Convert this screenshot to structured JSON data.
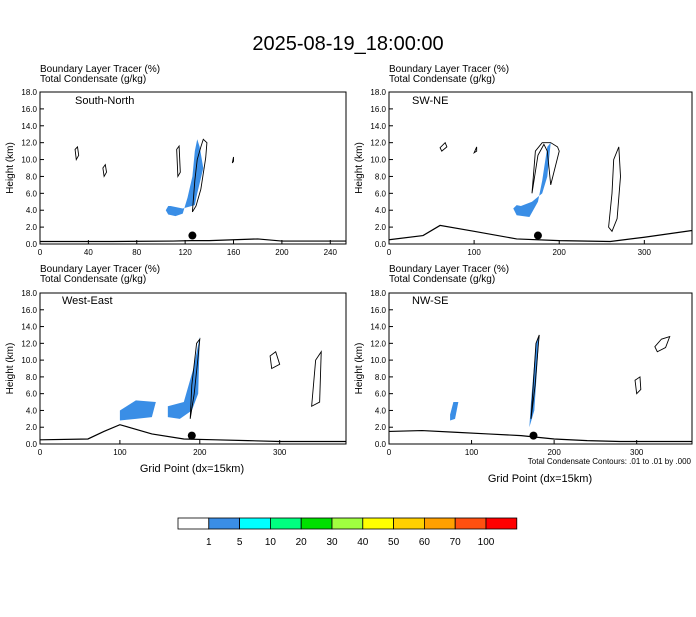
{
  "title": "2025-08-19_18:00:00",
  "colors": {
    "tracer": "#3a8ee6",
    "contour": "#000000",
    "terrain": "#000000"
  },
  "panels": [
    {
      "name": "South-North",
      "header_line1": "Boundary Layer Tracer   (%)",
      "header_line2": "Total Condensate   (g/kg)",
      "ylabel": "Height (km)",
      "xlabel": "",
      "xticks": [
        "0",
        "40",
        "80",
        "120",
        "160",
        "200",
        "240"
      ],
      "yticks": [
        "0.0",
        "2.0",
        "4.0",
        "6.0",
        "8.0",
        "10.0",
        "12.0",
        "14.0",
        "16.0",
        "18.0"
      ],
      "footnote": ""
    },
    {
      "name": "SW-NE",
      "header_line1": "Boundary Layer Tracer   (%)",
      "header_line2": "Total Condensate   (g/kg)",
      "ylabel": "Height (km)",
      "xlabel": "",
      "xticks": [
        "0",
        "100",
        "200",
        "300"
      ],
      "yticks": [
        "0.0",
        "2.0",
        "4.0",
        "6.0",
        "8.0",
        "10.0",
        "12.0",
        "14.0",
        "16.0",
        "18.0"
      ],
      "footnote": ""
    },
    {
      "name": "West-East",
      "header_line1": "Boundary Layer Tracer   (%)",
      "header_line2": "Total Condensate   (g/kg)",
      "ylabel": "Height (km)",
      "xlabel": "Grid Point (dx=15km)",
      "xticks": [
        "0",
        "100",
        "200",
        "300"
      ],
      "yticks": [
        "0.0",
        "2.0",
        "4.0",
        "6.0",
        "8.0",
        "10.0",
        "12.0",
        "14.0",
        "16.0",
        "18.0"
      ],
      "footnote": ""
    },
    {
      "name": "NW-SE",
      "header_line1": "Boundary Layer Tracer   (%)",
      "header_line2": "Total Condensate   (g/kg)",
      "ylabel": "Height (km)",
      "xlabel": "Grid Point (dx=15km)",
      "xticks": [
        "0",
        "100",
        "200",
        "300"
      ],
      "yticks": [
        "0.0",
        "2.0",
        "4.0",
        "6.0",
        "8.0",
        "10.0",
        "12.0",
        "14.0",
        "16.0",
        "18.0"
      ],
      "footnote": "Total Condensate Contours: .01 to .01 by .000"
    }
  ],
  "colorbar": {
    "labels": [
      "1",
      "5",
      "10",
      "20",
      "30",
      "40",
      "50",
      "60",
      "70",
      "100"
    ],
    "colors": [
      "#ffffff",
      "#3a8ee6",
      "#00ffff",
      "#00ff80",
      "#00e000",
      "#a0ff40",
      "#ffff00",
      "#ffd000",
      "#ffa000",
      "#ff5010",
      "#ff0000"
    ]
  },
  "chart_data": [
    {
      "type": "heatmap",
      "title": "South-North",
      "xlim": [
        0,
        253
      ],
      "ylim": [
        0,
        18
      ],
      "tracer_blobs_km": [
        {
          "x": [
            108,
            118,
            128,
            130,
            135,
            132,
            130,
            128,
            126,
            122,
            118,
            112,
            106,
            104,
            106
          ],
          "y": [
            4.5,
            4.2,
            4.6,
            6.0,
            9.0,
            11.5,
            12.4,
            11.0,
            8.0,
            5.5,
            3.6,
            3.3,
            3.5,
            4.0,
            4.5
          ]
        }
      ],
      "contours": [
        {
          "x": [
            126,
            129,
            133,
            137,
            138,
            135,
            133,
            130,
            128,
            126
          ],
          "y": [
            3.8,
            4.5,
            6.5,
            10.2,
            12.0,
            12.4,
            11.5,
            10.0,
            7.5,
            3.8
          ]
        },
        {
          "x": [
            30,
            32,
            31,
            29,
            30
          ],
          "y": [
            10.0,
            10.5,
            11.5,
            11.2,
            10.0
          ]
        },
        {
          "x": [
            53,
            55,
            54,
            52,
            53
          ],
          "y": [
            8.0,
            8.5,
            9.4,
            9.0,
            8.0
          ]
        },
        {
          "x": [
            114,
            116,
            115,
            113,
            114
          ],
          "y": [
            8.0,
            8.5,
            11.6,
            11.2,
            8.0
          ]
        },
        {
          "x": [
            159,
            160,
            160,
            159
          ],
          "y": [
            9.6,
            9.8,
            10.3,
            9.6
          ]
        }
      ],
      "terrain": {
        "x": [
          0,
          60,
          110,
          125,
          140,
          180,
          200,
          253
        ],
        "y": [
          0.3,
          0.3,
          0.35,
          0.4,
          0.4,
          0.6,
          0.35,
          0.35
        ]
      },
      "marker": {
        "x": 126,
        "y": 1.0
      }
    },
    {
      "type": "heatmap",
      "title": "SW-NE",
      "xlim": [
        0,
        356
      ],
      "ylim": [
        0,
        18
      ],
      "tracer_blobs_km": [
        {
          "x": [
            155,
            168,
            180,
            186,
            190,
            186,
            180,
            175,
            165,
            150,
            146,
            150,
            155
          ],
          "y": [
            4.5,
            5.0,
            6.0,
            8.0,
            12.0,
            11.5,
            7.5,
            5.0,
            3.2,
            3.4,
            4.2,
            4.6,
            4.5
          ]
        }
      ],
      "contours": [
        {
          "x": [
            168,
            175,
            182,
            186,
            190,
            200,
            198,
            190,
            180,
            172,
            168
          ],
          "y": [
            6.0,
            10.5,
            11.8,
            11.0,
            7.0,
            11.0,
            11.5,
            12.0,
            12.0,
            11.0,
            6.0
          ]
        },
        {
          "x": [
            62,
            68,
            66,
            60,
            62
          ],
          "y": [
            11.0,
            11.5,
            12.0,
            11.4,
            11.0
          ]
        },
        {
          "x": [
            100,
            103,
            103,
            100
          ],
          "y": [
            10.8,
            11.0,
            11.5,
            10.8
          ]
        },
        {
          "x": [
            258,
            262,
            264,
            270,
            272,
            268,
            262,
            258
          ],
          "y": [
            2.0,
            6.0,
            10.0,
            11.5,
            8.0,
            3.0,
            1.5,
            2.0
          ]
        }
      ],
      "terrain": {
        "x": [
          0,
          40,
          60,
          100,
          150,
          200,
          260,
          300,
          356
        ],
        "y": [
          0.5,
          1.0,
          2.2,
          1.5,
          0.6,
          0.4,
          0.3,
          0.8,
          1.6
        ]
      },
      "marker": {
        "x": 175,
        "y": 1.0
      }
    },
    {
      "type": "heatmap",
      "title": "West-East",
      "xlim": [
        0,
        383
      ],
      "ylim": [
        0,
        18
      ],
      "tracer_blobs_km": [
        {
          "x": [
            100,
            120,
            140,
            145,
            120,
            100
          ],
          "y": [
            2.8,
            3.0,
            3.2,
            5.0,
            5.2,
            4.0
          ]
        },
        {
          "x": [
            160,
            175,
            190,
            198,
            200,
            192,
            180,
            160
          ],
          "y": [
            3.2,
            3.0,
            4.0,
            6.0,
            12.8,
            9.0,
            5.0,
            4.5
          ]
        }
      ],
      "contours": [
        {
          "x": [
            188,
            193,
            198,
            200,
            196,
            190,
            188
          ],
          "y": [
            3.0,
            6.0,
            10.5,
            12.5,
            12.0,
            7.0,
            3.0
          ]
        },
        {
          "x": [
            340,
            350,
            352,
            345,
            340
          ],
          "y": [
            4.5,
            5.0,
            11.0,
            10.0,
            4.5
          ]
        },
        {
          "x": [
            290,
            300,
            295,
            288,
            290
          ],
          "y": [
            9.0,
            9.5,
            11.0,
            10.5,
            9.0
          ]
        }
      ],
      "terrain": {
        "x": [
          0,
          60,
          80,
          100,
          140,
          180,
          220,
          260,
          300,
          383
        ],
        "y": [
          0.5,
          0.6,
          1.5,
          2.3,
          1.2,
          0.6,
          0.5,
          0.4,
          0.3,
          0.3
        ]
      },
      "marker": {
        "x": 190,
        "y": 1.0
      }
    },
    {
      "type": "heatmap",
      "title": "NW-SE",
      "xlim": [
        0,
        367
      ],
      "ylim": [
        0,
        18
      ],
      "tracer_blobs_km": [
        {
          "x": [
            74,
            80,
            84,
            78,
            74
          ],
          "y": [
            2.8,
            3.0,
            5.0,
            5.0,
            3.5
          ]
        },
        {
          "x": [
            170,
            176,
            182,
            178,
            172,
            170
          ],
          "y": [
            2.0,
            4.0,
            13.0,
            12.0,
            5.0,
            2.0
          ]
        }
      ],
      "contours": [
        {
          "x": [
            172,
            177,
            181,
            182,
            178,
            174,
            172
          ],
          "y": [
            3.0,
            7.0,
            12.0,
            13.0,
            12.0,
            6.0,
            3.0
          ]
        },
        {
          "x": [
            325,
            335,
            340,
            330,
            322,
            325
          ],
          "y": [
            11.0,
            11.5,
            12.8,
            12.5,
            11.6,
            11.0
          ]
        },
        {
          "x": [
            300,
            305,
            304,
            298,
            300
          ],
          "y": [
            6.0,
            6.5,
            8.0,
            7.6,
            6.0
          ]
        }
      ],
      "terrain": {
        "x": [
          0,
          40,
          80,
          120,
          160,
          200,
          240,
          280,
          320,
          367
        ],
        "y": [
          1.5,
          1.6,
          1.4,
          1.2,
          1.0,
          0.6,
          0.4,
          0.3,
          0.3,
          0.3
        ]
      },
      "marker": {
        "x": 175,
        "y": 1.0
      }
    }
  ]
}
